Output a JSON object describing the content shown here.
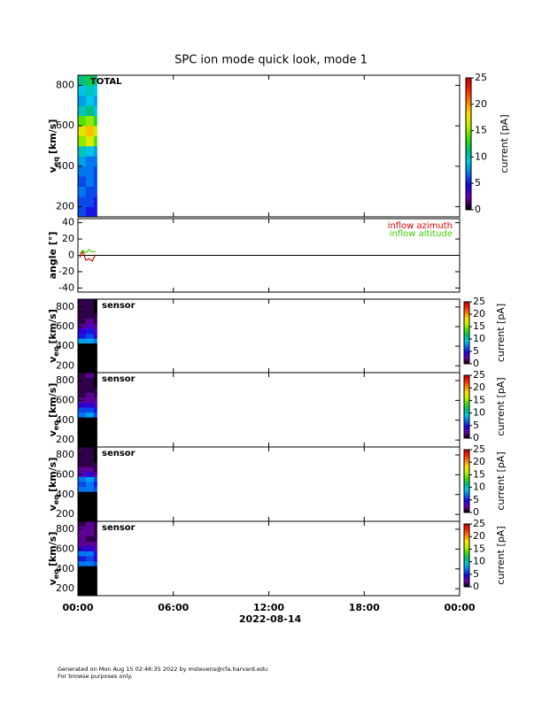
{
  "title": "SPC ion mode quick look, mode 1",
  "x_axis": {
    "xlim": [
      0,
      24
    ],
    "xticks": [
      {
        "value": 0,
        "label": "00:00"
      },
      {
        "value": 6,
        "label": "06:00"
      },
      {
        "value": 12,
        "label": "12:00"
      },
      {
        "value": 18,
        "label": "18:00"
      },
      {
        "value": 24,
        "label": "00:00"
      }
    ],
    "label": "2022-08-14"
  },
  "colormap": [
    "#000000",
    "#6a00a8",
    "#1a00e0",
    "#0070f0",
    "#00c8e8",
    "#00c070",
    "#40e000",
    "#c0f000",
    "#ffe000",
    "#ff8000",
    "#ff2000",
    "#c00000"
  ],
  "chart_data": [
    {
      "type": "heatmap",
      "label": "TOTAL",
      "ylabel": "v",
      "ylabel_sub": "eq",
      "ylabel_unit": "[km/s]",
      "ylim": [
        150,
        850
      ],
      "yticks": [
        200,
        400,
        600,
        800
      ],
      "time_bins": [
        0,
        0.5,
        1.0,
        1.2
      ],
      "velocity_bins": [
        150,
        200,
        250,
        300,
        350,
        400,
        450,
        500,
        550,
        600,
        650,
        700,
        750,
        800,
        850
      ],
      "values": [
        [
          6,
          5,
          5
        ],
        [
          6,
          6,
          5
        ],
        [
          7,
          6,
          6
        ],
        [
          6,
          7,
          6
        ],
        [
          7,
          7,
          6
        ],
        [
          8,
          7,
          7
        ],
        [
          10,
          9,
          8
        ],
        [
          15,
          17,
          14
        ],
        [
          17,
          19,
          16
        ],
        [
          14,
          15,
          13
        ],
        [
          10,
          11,
          9
        ],
        [
          8,
          9,
          8
        ],
        [
          9,
          10,
          9
        ],
        [
          11,
          12,
          11
        ]
      ],
      "clim": [
        0,
        25
      ],
      "cticks": [
        0,
        5,
        10,
        15,
        20,
        25
      ],
      "colorbar_label": "current [pA]"
    },
    {
      "type": "line",
      "ylabel": "angle [°]",
      "ylim": [
        -45,
        45
      ],
      "yticks": [
        -40,
        -20,
        0,
        20,
        40
      ],
      "zero_line": true,
      "x": [
        0.1,
        0.3,
        0.5,
        0.7,
        0.9,
        1.1
      ],
      "series": [
        {
          "name": "inflow azimuth",
          "color": "#e00000",
          "values": [
            -3,
            5,
            -6,
            -4,
            -7,
            1
          ]
        },
        {
          "name": "inflow altitude",
          "color": "#40d000",
          "values": [
            2,
            6,
            3,
            7,
            4,
            5
          ]
        }
      ]
    },
    {
      "type": "heatmap",
      "label": "sensor",
      "ylabel": "v",
      "ylabel_sub": "eq",
      "ylabel_unit": "[km/s]",
      "ylim": [
        130,
        880
      ],
      "yticks": [
        200,
        400,
        600,
        800
      ],
      "time_bins": [
        0,
        0.5,
        1.0,
        1.2
      ],
      "velocity_bins": [
        130,
        180,
        230,
        280,
        330,
        380,
        430,
        480,
        530,
        580,
        630,
        680,
        730,
        780,
        830,
        880
      ],
      "values": [
        [
          0,
          0,
          0
        ],
        [
          0,
          0,
          0
        ],
        [
          0,
          0,
          0
        ],
        [
          0,
          0,
          0
        ],
        [
          0,
          0,
          0
        ],
        [
          0,
          0,
          0
        ],
        [
          8,
          8,
          7
        ],
        [
          5,
          6,
          4
        ],
        [
          4,
          5,
          3
        ],
        [
          2,
          3,
          2
        ],
        [
          1,
          2,
          1
        ],
        [
          1,
          1,
          1
        ],
        [
          1,
          1,
          0
        ],
        [
          1,
          1,
          0
        ],
        [
          1,
          1,
          0
        ]
      ],
      "clim": [
        0,
        25
      ],
      "cticks": [
        0,
        5,
        10,
        15,
        20,
        25
      ],
      "colorbar_label": "current [pA]"
    },
    {
      "type": "heatmap",
      "label": "sensor",
      "ylabel": "v",
      "ylabel_sub": "eq",
      "ylabel_unit": "[km/s]",
      "ylim": [
        130,
        880
      ],
      "yticks": [
        200,
        400,
        600,
        800
      ],
      "time_bins": [
        0,
        0.5,
        1.0,
        1.2
      ],
      "velocity_bins": [
        130,
        180,
        230,
        280,
        330,
        380,
        430,
        480,
        530,
        580,
        630,
        680,
        730,
        780,
        830,
        880
      ],
      "values": [
        [
          0,
          0,
          0
        ],
        [
          0,
          0,
          0
        ],
        [
          0,
          0,
          0
        ],
        [
          0,
          0,
          0
        ],
        [
          0,
          0,
          0
        ],
        [
          0,
          0,
          0
        ],
        [
          7,
          8,
          6
        ],
        [
          6,
          6,
          5
        ],
        [
          4,
          4,
          3
        ],
        [
          2,
          2,
          2
        ],
        [
          1,
          2,
          1
        ],
        [
          1,
          1,
          1
        ],
        [
          1,
          1,
          0
        ],
        [
          1,
          1,
          0
        ],
        [
          1,
          2,
          0
        ]
      ],
      "clim": [
        0,
        25
      ],
      "cticks": [
        0,
        5,
        10,
        15,
        20,
        25
      ],
      "colorbar_label": "current [pA]"
    },
    {
      "type": "heatmap",
      "label": "sensor",
      "ylabel": "v",
      "ylabel_sub": "eq",
      "ylabel_unit": "[km/s]",
      "ylim": [
        130,
        880
      ],
      "yticks": [
        200,
        400,
        600,
        800
      ],
      "time_bins": [
        0,
        0.5,
        1.0,
        1.2
      ],
      "velocity_bins": [
        130,
        180,
        230,
        280,
        330,
        380,
        430,
        480,
        530,
        580,
        630,
        680,
        730,
        780,
        830,
        880
      ],
      "values": [
        [
          0,
          0,
          0
        ],
        [
          0,
          0,
          0
        ],
        [
          0,
          0,
          0
        ],
        [
          0,
          0,
          0
        ],
        [
          0,
          0,
          0
        ],
        [
          0,
          0,
          0
        ],
        [
          7,
          7,
          6
        ],
        [
          6,
          7,
          5
        ],
        [
          7,
          8,
          6
        ],
        [
          3,
          4,
          2
        ],
        [
          2,
          2,
          1
        ],
        [
          1,
          1,
          1
        ],
        [
          1,
          1,
          0
        ],
        [
          1,
          1,
          0
        ],
        [
          1,
          1,
          0
        ]
      ],
      "clim": [
        0,
        25
      ],
      "cticks": [
        0,
        5,
        10,
        15,
        20,
        25
      ],
      "colorbar_label": "current [pA]"
    },
    {
      "type": "heatmap",
      "label": "sensor",
      "ylabel": "v",
      "ylabel_sub": "eq",
      "ylabel_unit": "[km/s]",
      "ylim": [
        130,
        880
      ],
      "yticks": [
        200,
        400,
        600,
        800
      ],
      "time_bins": [
        0,
        0.5,
        1.0,
        1.2
      ],
      "velocity_bins": [
        130,
        180,
        230,
        280,
        330,
        380,
        430,
        480,
        530,
        580,
        630,
        680,
        730,
        780,
        830,
        880
      ],
      "values": [
        [
          0,
          0,
          0
        ],
        [
          0,
          0,
          0
        ],
        [
          0,
          0,
          0
        ],
        [
          0,
          0,
          0
        ],
        [
          0,
          0,
          0
        ],
        [
          0,
          0,
          0
        ],
        [
          7,
          7,
          6
        ],
        [
          5,
          6,
          4
        ],
        [
          7,
          7,
          5
        ],
        [
          4,
          4,
          3
        ],
        [
          2,
          2,
          2
        ],
        [
          2,
          1,
          1
        ],
        [
          2,
          2,
          1
        ],
        [
          2,
          2,
          1
        ],
        [
          1,
          2,
          1
        ]
      ],
      "clim": [
        0,
        25
      ],
      "cticks": [
        0,
        5,
        10,
        15,
        20,
        25
      ],
      "colorbar_label": "current [pA]"
    }
  ],
  "footer": [
    "Generated on Mon Aug 15 02:46:35 2022 by mstevens@cfa.harvard.edu",
    "For browse purposes only."
  ]
}
